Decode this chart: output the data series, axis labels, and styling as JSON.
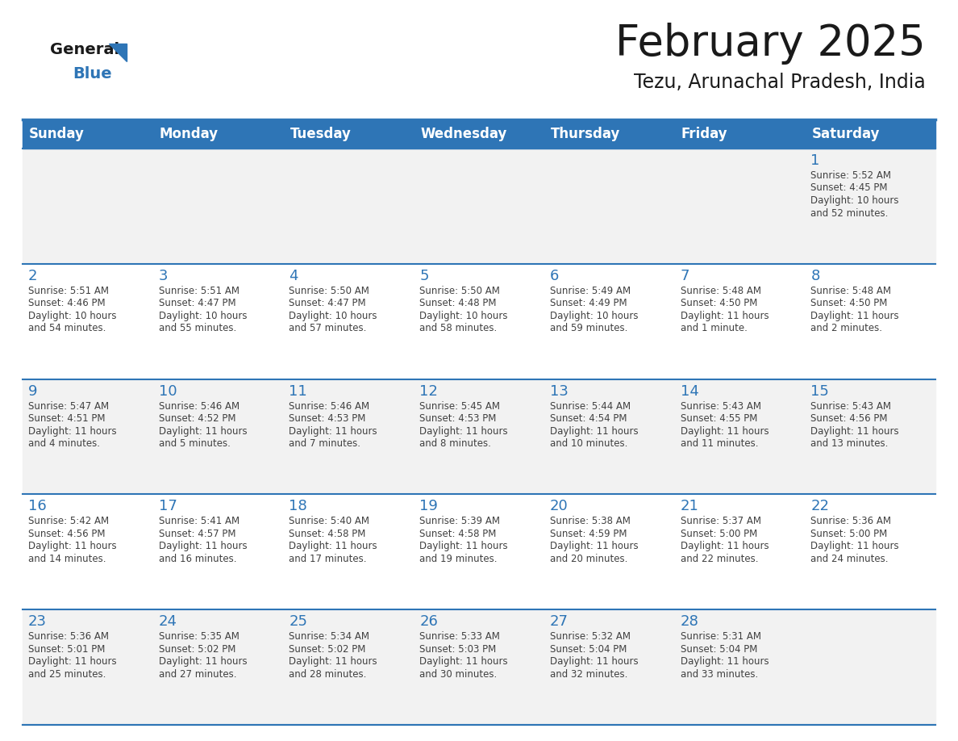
{
  "title": "February 2025",
  "subtitle": "Tezu, Arunachal Pradesh, India",
  "days_of_week": [
    "Sunday",
    "Monday",
    "Tuesday",
    "Wednesday",
    "Thursday",
    "Friday",
    "Saturday"
  ],
  "header_bg": "#2E75B6",
  "header_text_color": "#FFFFFF",
  "cell_bg_odd": "#F2F2F2",
  "cell_bg_even": "#FFFFFF",
  "day_number_color": "#2E75B6",
  "info_text_color": "#404040",
  "border_color": "#2E75B6",
  "title_fontsize": 38,
  "subtitle_fontsize": 17,
  "header_fontsize": 12,
  "day_num_fontsize": 13,
  "info_fontsize": 8.5,
  "logo_general_fontsize": 14,
  "logo_blue_fontsize": 14,
  "calendar_data": [
    [
      null,
      null,
      null,
      null,
      null,
      null,
      {
        "day": "1",
        "sunrise": "5:52 AM",
        "sunset": "4:45 PM",
        "daylight_line1": "Daylight: 10 hours",
        "daylight_line2": "and 52 minutes."
      }
    ],
    [
      {
        "day": "2",
        "sunrise": "5:51 AM",
        "sunset": "4:46 PM",
        "daylight_line1": "Daylight: 10 hours",
        "daylight_line2": "and 54 minutes."
      },
      {
        "day": "3",
        "sunrise": "5:51 AM",
        "sunset": "4:47 PM",
        "daylight_line1": "Daylight: 10 hours",
        "daylight_line2": "and 55 minutes."
      },
      {
        "day": "4",
        "sunrise": "5:50 AM",
        "sunset": "4:47 PM",
        "daylight_line1": "Daylight: 10 hours",
        "daylight_line2": "and 57 minutes."
      },
      {
        "day": "5",
        "sunrise": "5:50 AM",
        "sunset": "4:48 PM",
        "daylight_line1": "Daylight: 10 hours",
        "daylight_line2": "and 58 minutes."
      },
      {
        "day": "6",
        "sunrise": "5:49 AM",
        "sunset": "4:49 PM",
        "daylight_line1": "Daylight: 10 hours",
        "daylight_line2": "and 59 minutes."
      },
      {
        "day": "7",
        "sunrise": "5:48 AM",
        "sunset": "4:50 PM",
        "daylight_line1": "Daylight: 11 hours",
        "daylight_line2": "and 1 minute."
      },
      {
        "day": "8",
        "sunrise": "5:48 AM",
        "sunset": "4:50 PM",
        "daylight_line1": "Daylight: 11 hours",
        "daylight_line2": "and 2 minutes."
      }
    ],
    [
      {
        "day": "9",
        "sunrise": "5:47 AM",
        "sunset": "4:51 PM",
        "daylight_line1": "Daylight: 11 hours",
        "daylight_line2": "and 4 minutes."
      },
      {
        "day": "10",
        "sunrise": "5:46 AM",
        "sunset": "4:52 PM",
        "daylight_line1": "Daylight: 11 hours",
        "daylight_line2": "and 5 minutes."
      },
      {
        "day": "11",
        "sunrise": "5:46 AM",
        "sunset": "4:53 PM",
        "daylight_line1": "Daylight: 11 hours",
        "daylight_line2": "and 7 minutes."
      },
      {
        "day": "12",
        "sunrise": "5:45 AM",
        "sunset": "4:53 PM",
        "daylight_line1": "Daylight: 11 hours",
        "daylight_line2": "and 8 minutes."
      },
      {
        "day": "13",
        "sunrise": "5:44 AM",
        "sunset": "4:54 PM",
        "daylight_line1": "Daylight: 11 hours",
        "daylight_line2": "and 10 minutes."
      },
      {
        "day": "14",
        "sunrise": "5:43 AM",
        "sunset": "4:55 PM",
        "daylight_line1": "Daylight: 11 hours",
        "daylight_line2": "and 11 minutes."
      },
      {
        "day": "15",
        "sunrise": "5:43 AM",
        "sunset": "4:56 PM",
        "daylight_line1": "Daylight: 11 hours",
        "daylight_line2": "and 13 minutes."
      }
    ],
    [
      {
        "day": "16",
        "sunrise": "5:42 AM",
        "sunset": "4:56 PM",
        "daylight_line1": "Daylight: 11 hours",
        "daylight_line2": "and 14 minutes."
      },
      {
        "day": "17",
        "sunrise": "5:41 AM",
        "sunset": "4:57 PM",
        "daylight_line1": "Daylight: 11 hours",
        "daylight_line2": "and 16 minutes."
      },
      {
        "day": "18",
        "sunrise": "5:40 AM",
        "sunset": "4:58 PM",
        "daylight_line1": "Daylight: 11 hours",
        "daylight_line2": "and 17 minutes."
      },
      {
        "day": "19",
        "sunrise": "5:39 AM",
        "sunset": "4:58 PM",
        "daylight_line1": "Daylight: 11 hours",
        "daylight_line2": "and 19 minutes."
      },
      {
        "day": "20",
        "sunrise": "5:38 AM",
        "sunset": "4:59 PM",
        "daylight_line1": "Daylight: 11 hours",
        "daylight_line2": "and 20 minutes."
      },
      {
        "day": "21",
        "sunrise": "5:37 AM",
        "sunset": "5:00 PM",
        "daylight_line1": "Daylight: 11 hours",
        "daylight_line2": "and 22 minutes."
      },
      {
        "day": "22",
        "sunrise": "5:36 AM",
        "sunset": "5:00 PM",
        "daylight_line1": "Daylight: 11 hours",
        "daylight_line2": "and 24 minutes."
      }
    ],
    [
      {
        "day": "23",
        "sunrise": "5:36 AM",
        "sunset": "5:01 PM",
        "daylight_line1": "Daylight: 11 hours",
        "daylight_line2": "and 25 minutes."
      },
      {
        "day": "24",
        "sunrise": "5:35 AM",
        "sunset": "5:02 PM",
        "daylight_line1": "Daylight: 11 hours",
        "daylight_line2": "and 27 minutes."
      },
      {
        "day": "25",
        "sunrise": "5:34 AM",
        "sunset": "5:02 PM",
        "daylight_line1": "Daylight: 11 hours",
        "daylight_line2": "and 28 minutes."
      },
      {
        "day": "26",
        "sunrise": "5:33 AM",
        "sunset": "5:03 PM",
        "daylight_line1": "Daylight: 11 hours",
        "daylight_line2": "and 30 minutes."
      },
      {
        "day": "27",
        "sunrise": "5:32 AM",
        "sunset": "5:04 PM",
        "daylight_line1": "Daylight: 11 hours",
        "daylight_line2": "and 32 minutes."
      },
      {
        "day": "28",
        "sunrise": "5:31 AM",
        "sunset": "5:04 PM",
        "daylight_line1": "Daylight: 11 hours",
        "daylight_line2": "and 33 minutes."
      },
      null
    ]
  ]
}
